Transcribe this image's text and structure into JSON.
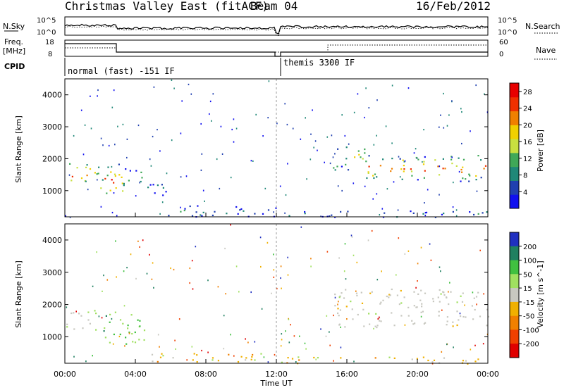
{
  "header": {
    "station": "Christmas Valley East (fitACF)",
    "beam": "Beam 04",
    "date": "16/Feb/2012"
  },
  "top_panel": {
    "left_label": "N.Sky",
    "left_ticks": [
      "10^5",
      "10^0"
    ],
    "right_ticks": [
      "10^5",
      "10^0"
    ],
    "right_label": "N.Search"
  },
  "freq_panel": {
    "left_label_1": "Freq.",
    "left_label_2": "[MHz]",
    "left_ticks": [
      "18",
      "8"
    ],
    "right_ticks": [
      "60",
      "0"
    ],
    "right_label": "Nave"
  },
  "cpid": {
    "label": "CPID",
    "mode_1": "normal (fast) -151 IF",
    "mode_2": "themis 3300 IF"
  },
  "chart_data": [
    {
      "type": "heatmap",
      "quantity": "power",
      "ylabel": "Slant Range [km]",
      "xlabel": "Time UT",
      "x_ticks": [
        "00:00",
        "04:00",
        "08:00",
        "12:00",
        "16:00",
        "20:00",
        "00:00"
      ],
      "xlim_hours": [
        0,
        24
      ],
      "y_ticks": [
        1000,
        2000,
        3000,
        4000
      ],
      "ylim_km": [
        180,
        4500
      ],
      "colorbar": {
        "label": "Power [dB]",
        "ticks": [
          4,
          8,
          12,
          16,
          20,
          24,
          28
        ],
        "range": [
          0,
          30
        ],
        "colors": [
          "#1010f0",
          "#2040b0",
          "#208878",
          "#40a858",
          "#c8e040",
          "#f0d000",
          "#f08000",
          "#f03000",
          "#e80000"
        ]
      },
      "scatter_regions": [
        {
          "t0": 0.0,
          "t1": 1.4,
          "r0": 1180,
          "r1": 1950,
          "level": 0.85
        },
        {
          "t0": 1.4,
          "t1": 2.6,
          "r0": 1300,
          "r1": 1950,
          "level": 0.55
        },
        {
          "t0": 2.0,
          "t1": 3.3,
          "r0": 800,
          "r1": 1850,
          "level": 0.9
        },
        {
          "t0": 3.3,
          "t1": 4.5,
          "r0": 1000,
          "r1": 1750,
          "level": 0.35
        },
        {
          "t0": 4.5,
          "t1": 6.0,
          "r0": 800,
          "r1": 1400,
          "level": 0.15
        },
        {
          "t0": 5.0,
          "t1": 12.0,
          "r0": 200,
          "r1": 550,
          "level": 0.2
        },
        {
          "t0": 12.2,
          "t1": 24.0,
          "r0": 180,
          "r1": 400,
          "level": 0.25
        },
        {
          "t0": 15.2,
          "t1": 17.0,
          "r0": 1650,
          "r1": 2500,
          "level": 0.5
        },
        {
          "t0": 17.0,
          "t1": 24.0,
          "r0": 1300,
          "r1": 2150,
          "level": 0.8
        }
      ]
    },
    {
      "type": "heatmap",
      "quantity": "velocity",
      "ylabel": "Slant Range [km]",
      "xlabel": "Time UT",
      "x_ticks": [
        "00:00",
        "04:00",
        "08:00",
        "12:00",
        "16:00",
        "20:00",
        "00:00"
      ],
      "xlim_hours": [
        0,
        24
      ],
      "y_ticks": [
        1000,
        2000,
        3000,
        4000
      ],
      "ylim_km": [
        180,
        4500
      ],
      "colorbar": {
        "label": "Velocity [m s^-1]",
        "ticks": [
          200,
          100,
          50,
          15,
          -15,
          -50,
          -100,
          -200
        ],
        "colors": [
          "#2030c0",
          "#208060",
          "#40c040",
          "#a0e060",
          "#c8c8c0",
          "#f0b000",
          "#f08000",
          "#f04000",
          "#e00000"
        ]
      },
      "scatter_regions": [
        {
          "t0": 0.0,
          "t1": 1.6,
          "r0": 1250,
          "r1": 1900,
          "kind": "grey"
        },
        {
          "t0": 1.6,
          "t1": 4.5,
          "r0": 800,
          "r1": 1850,
          "kind": "green"
        },
        {
          "t0": 4.5,
          "t1": 12.0,
          "r0": 200,
          "r1": 500,
          "kind": "orange"
        },
        {
          "t0": 12.2,
          "t1": 24.0,
          "r0": 180,
          "r1": 400,
          "kind": "orange"
        },
        {
          "t0": 15.2,
          "t1": 24.0,
          "r0": 1300,
          "r1": 2500,
          "kind": "grey"
        }
      ]
    }
  ]
}
